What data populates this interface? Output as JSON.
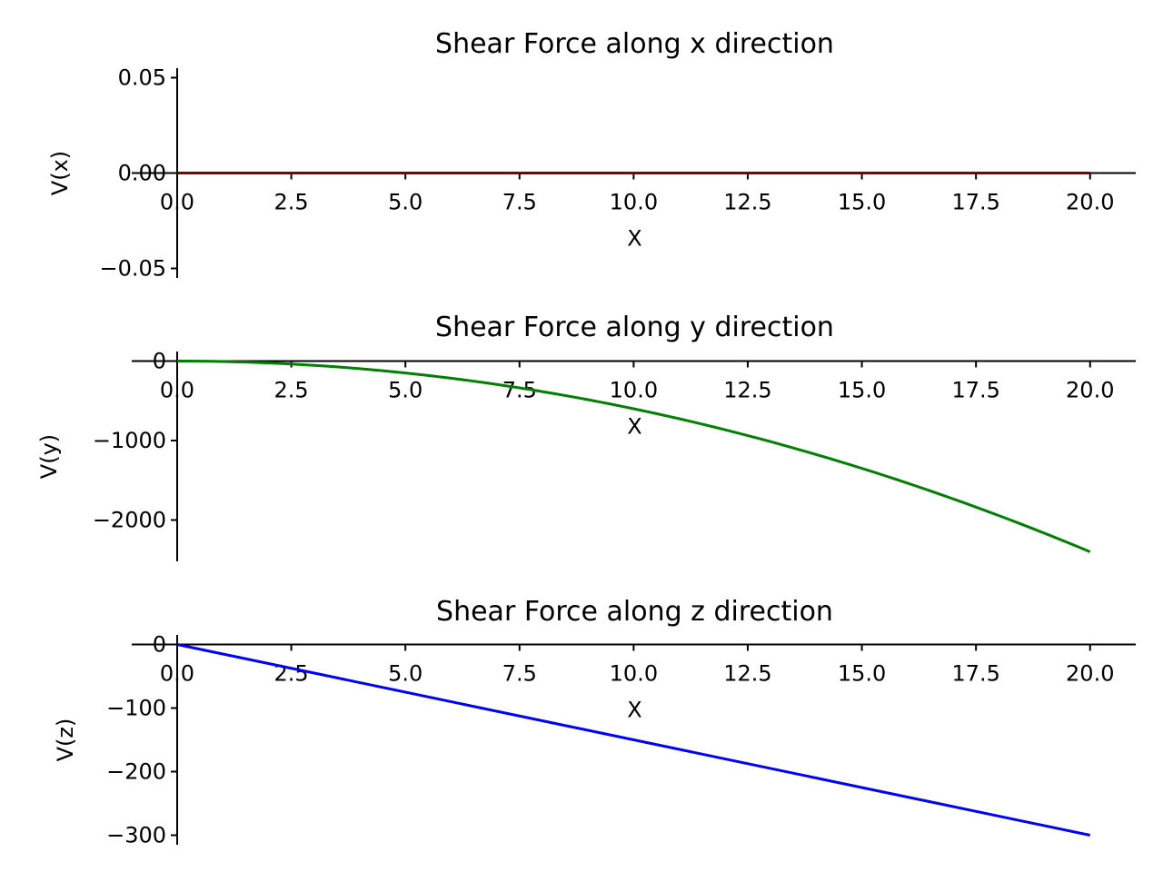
{
  "chart_data": [
    {
      "type": "line",
      "title": "Shear Force along x direction",
      "xlabel": "X",
      "ylabel": "V(x)",
      "xlim": [
        0,
        21
      ],
      "ylim": [
        -0.055,
        0.055
      ],
      "xticks": [
        0,
        2.5,
        5,
        7.5,
        10,
        12.5,
        15,
        17.5,
        20
      ],
      "xtick_labels": [
        "0.0",
        "2.5",
        "5.0",
        "7.5",
        "10.0",
        "12.5",
        "15.0",
        "17.5",
        "20.0"
      ],
      "yticks": [
        -0.05,
        0,
        0.05
      ],
      "ytick_labels": [
        "−0.05",
        "0.00",
        "0.05"
      ],
      "grid": false,
      "series": [
        {
          "color": "#800000",
          "x": [
            0,
            20
          ],
          "y": [
            0,
            0
          ]
        }
      ]
    },
    {
      "type": "line",
      "title": "Shear Force along y direction",
      "xlabel": "X",
      "ylabel": "V(y)",
      "xlim": [
        0,
        21
      ],
      "ylim": [
        -2520,
        120
      ],
      "xticks": [
        0,
        2.5,
        5,
        7.5,
        10,
        12.5,
        15,
        17.5,
        20
      ],
      "xtick_labels": [
        "0.0",
        "2.5",
        "5.0",
        "7.5",
        "10.0",
        "12.5",
        "15.0",
        "17.5",
        "20.0"
      ],
      "yticks": [
        -2000,
        -1000,
        0
      ],
      "ytick_labels": [
        "−2000",
        "−1000",
        "0"
      ],
      "grid": false,
      "series": [
        {
          "color": "#008000",
          "x": [
            0,
            2.5,
            5,
            7.5,
            10,
            12.5,
            15,
            17.5,
            20
          ],
          "y": [
            0,
            -38,
            -150,
            -338,
            -600,
            -938,
            -1350,
            -1838,
            -2400
          ]
        }
      ]
    },
    {
      "type": "line",
      "title": "Shear Force along z direction",
      "xlabel": "X",
      "ylabel": "V(z)",
      "xlim": [
        0,
        21
      ],
      "ylim": [
        -315,
        15
      ],
      "xticks": [
        0,
        2.5,
        5,
        7.5,
        10,
        12.5,
        15,
        17.5,
        20
      ],
      "xtick_labels": [
        "0.0",
        "2.5",
        "5.0",
        "7.5",
        "10.0",
        "12.5",
        "15.0",
        "17.5",
        "20.0"
      ],
      "yticks": [
        -300,
        -200,
        -100,
        0
      ],
      "ytick_labels": [
        "−300",
        "−200",
        "−100",
        "0"
      ],
      "grid": false,
      "series": [
        {
          "color": "#0000ff",
          "x": [
            0,
            20
          ],
          "y": [
            0,
            -300
          ]
        }
      ]
    }
  ]
}
